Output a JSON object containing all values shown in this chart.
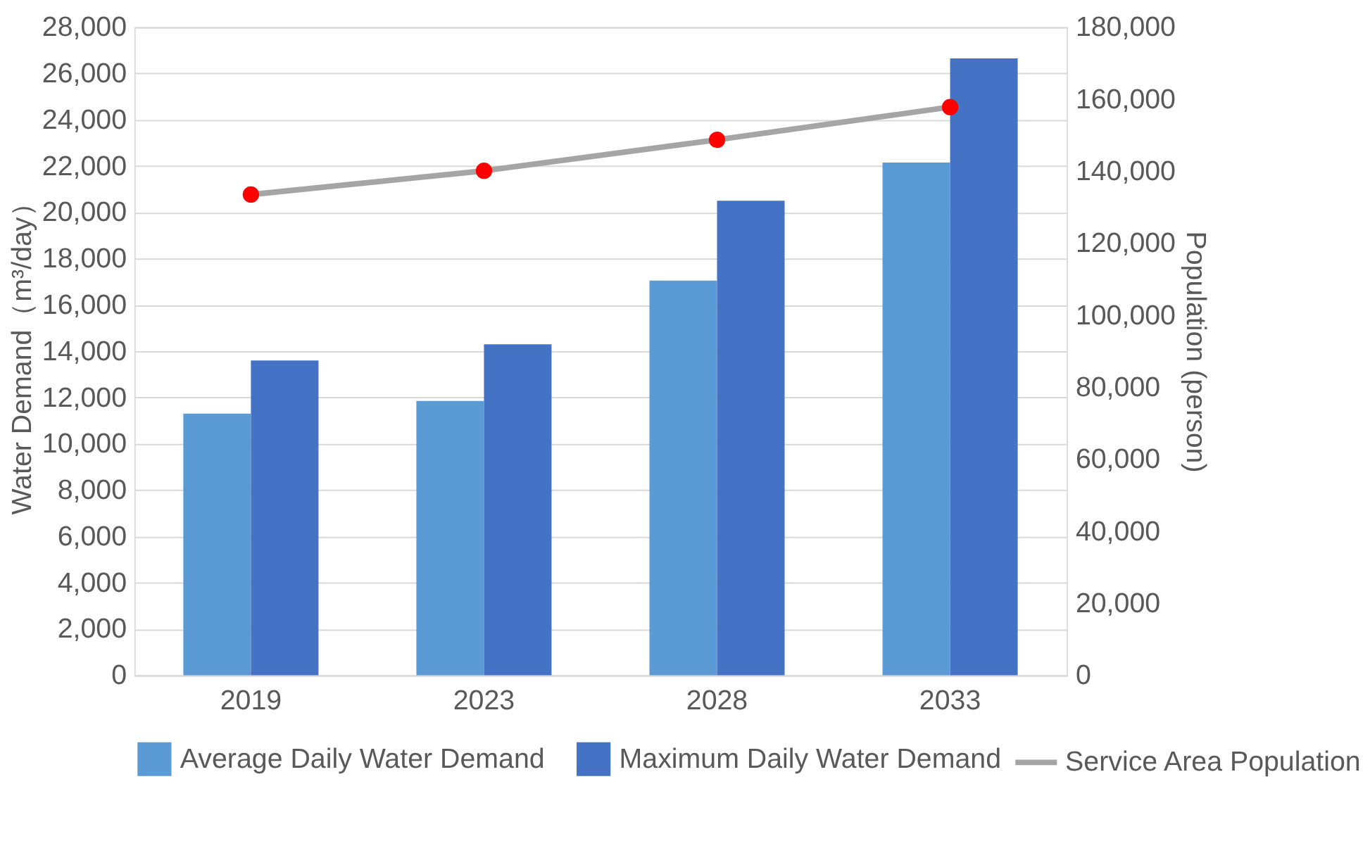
{
  "chart_data": {
    "type": "bar",
    "categories": [
      "2019",
      "2023",
      "2028",
      "2033"
    ],
    "series": [
      {
        "name": "Average Daily Water Demand",
        "color": "#5b9bd5",
        "values": [
          11300,
          11850,
          17050,
          22150
        ]
      },
      {
        "name": "Maximum Daily Water Demand",
        "color": "#4472c4",
        "values": [
          13600,
          14300,
          20500,
          26650
        ]
      },
      {
        "name": "Service Area Population",
        "type": "line",
        "axis": "y2",
        "color": "#a5a5a5",
        "marker": "circle",
        "values": [
          133500,
          140100,
          148700,
          157800
        ]
      }
    ],
    "ylabel": "Water Demand（m³/day）",
    "y2label": "Population (person)",
    "ylim": [
      0,
      28000
    ],
    "yticks": [
      0,
      {
        "value": 2000,
        "label": "2,000"
      },
      {
        "value": 4000,
        "label": "4,000"
      },
      {
        "value": 6000,
        "label": "6,000"
      },
      {
        "value": 8000,
        "label": "8,000"
      },
      {
        "value": 10000,
        "label": "10,000"
      },
      {
        "value": 12000,
        "label": "12,000"
      },
      {
        "value": 14000,
        "label": "14,000"
      },
      {
        "value": 16000,
        "label": "16,000"
      },
      {
        "value": 18000,
        "label": "18,000"
      },
      {
        "value": 20000,
        "label": "20,000"
      },
      {
        "value": 22000,
        "label": "22,000"
      },
      {
        "value": 24000,
        "label": "24,000"
      },
      {
        "value": 26000,
        "label": "26,000"
      },
      {
        "value": 28000,
        "label": "28,000"
      }
    ],
    "y2lim": [
      0,
      180000
    ],
    "y2ticks": [
      0,
      {
        "value": 20000,
        "label": "20,000"
      },
      {
        "value": 40000,
        "label": "40,000"
      },
      {
        "value": 60000,
        "label": "60,000"
      },
      {
        "value": 80000,
        "label": "80,000"
      },
      {
        "value": 100000,
        "label": "100,000"
      },
      {
        "value": 120000,
        "label": "120,000"
      },
      {
        "value": 140000,
        "label": "140,000"
      },
      {
        "value": 160000,
        "label": "160,000"
      },
      {
        "value": 180000,
        "label": "180,000"
      }
    ],
    "grid": "y",
    "legend": "bottom"
  }
}
